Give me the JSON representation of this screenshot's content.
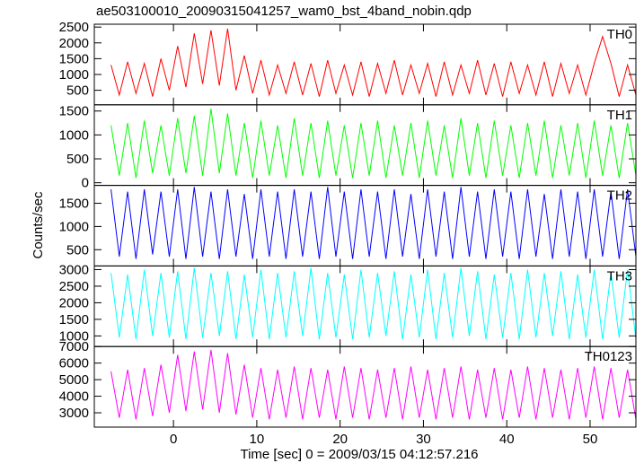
{
  "chart_data": {
    "type": "line",
    "title": "ae503100010_20090315041257_wam0_bst_4band_nobin.qdp",
    "xlabel": "Time [sec] 0 = 2009/03/15 04:12:57.216",
    "ylabel": "Counts/sec",
    "xlim": [
      -9.5,
      55.5
    ],
    "xticks": [
      0,
      10,
      20,
      30,
      40,
      50
    ],
    "x": [
      -7.5,
      -6.5,
      -5.5,
      -4.5,
      -3.5,
      -2.5,
      -1.5,
      -0.5,
      0.5,
      1.5,
      2.5,
      3.5,
      4.5,
      5.5,
      6.5,
      7.5,
      8.5,
      9.5,
      10.5,
      11.5,
      12.5,
      13.5,
      14.5,
      15.5,
      16.5,
      17.5,
      18.5,
      19.5,
      20.5,
      21.5,
      22.5,
      23.5,
      24.5,
      25.5,
      26.5,
      27.5,
      28.5,
      29.5,
      30.5,
      31.5,
      32.5,
      33.5,
      34.5,
      35.5,
      36.5,
      37.5,
      38.5,
      39.5,
      40.5,
      41.5,
      42.5,
      43.5,
      44.5,
      45.5,
      46.5,
      47.5,
      48.5,
      49.5,
      50.5,
      51.5,
      52.5,
      53.5,
      54.5,
      55.5
    ],
    "series": [
      {
        "name": "TH0",
        "color": "#ff0000",
        "ylim": [
          40,
          2590
        ],
        "yticks": [
          500,
          1000,
          1500,
          2000,
          2500
        ],
        "values": [
          1300,
          350,
          1400,
          400,
          1350,
          300,
          1500,
          500,
          1900,
          600,
          2300,
          700,
          2400,
          650,
          2450,
          500,
          1600,
          400,
          1450,
          350,
          1300,
          400,
          1400,
          350,
          1350,
          300,
          1450,
          400,
          1300,
          350,
          1400,
          300,
          1350,
          400,
          1450,
          350,
          1300,
          400,
          1350,
          300,
          1400,
          350,
          1300,
          400,
          1450,
          350,
          1350,
          300,
          1400,
          400,
          1300,
          350,
          1400,
          300,
          1350,
          400,
          1300,
          350,
          1350,
          2200,
          1350,
          300,
          1300,
          350
        ]
      },
      {
        "name": "TH1",
        "color": "#00ff00",
        "ylim": [
          -55,
          1630
        ],
        "yticks": [
          0,
          500,
          1000,
          1500
        ],
        "values": [
          1200,
          150,
          1250,
          100,
          1300,
          200,
          1200,
          150,
          1350,
          200,
          1400,
          150,
          1550,
          200,
          1450,
          150,
          1250,
          100,
          1300,
          150,
          1200,
          100,
          1350,
          150,
          1250,
          100,
          1300,
          150,
          1200,
          100,
          1250,
          150,
          1300,
          100,
          1200,
          150,
          1250,
          100,
          1300,
          150,
          1200,
          100,
          1350,
          150,
          1250,
          100,
          1300,
          150,
          1200,
          100,
          1250,
          150,
          1300,
          100,
          1200,
          150,
          1250,
          100,
          1300,
          150,
          1200,
          100,
          1250,
          150
        ]
      },
      {
        "name": "TH2",
        "color": "#0000ff",
        "ylim": [
          150,
          1885
        ],
        "yticks": [
          500,
          1000,
          1500
        ],
        "values": [
          1800,
          350,
          1750,
          300,
          1800,
          400,
          1750,
          350,
          1800,
          300,
          1850,
          350,
          1750,
          300,
          1800,
          350,
          1700,
          300,
          1800,
          350,
          1750,
          300,
          1800,
          350,
          1750,
          300,
          1850,
          350,
          1750,
          300,
          1800,
          350,
          1750,
          300,
          1800,
          350,
          1700,
          300,
          1800,
          350,
          1750,
          300,
          1850,
          350,
          1750,
          300,
          1800,
          350,
          1750,
          300,
          1800,
          350,
          1700,
          300,
          1800,
          350,
          1750,
          300,
          1800,
          350,
          1750,
          300,
          1800,
          350
        ]
      },
      {
        "name": "TH3",
        "color": "#00ffff",
        "ylim": [
          680,
          3110
        ],
        "yticks": [
          1000,
          1500,
          2000,
          2500,
          3000
        ],
        "values": [
          2900,
          950,
          2850,
          900,
          3000,
          1000,
          2900,
          950,
          2950,
          900,
          3050,
          950,
          2900,
          1000,
          2950,
          900,
          2850,
          950,
          3000,
          900,
          2900,
          950,
          2950,
          1000,
          3050,
          900,
          2900,
          950,
          2850,
          900,
          3000,
          950,
          2900,
          1000,
          2950,
          900,
          2850,
          950,
          3000,
          900,
          2900,
          950,
          3050,
          1000,
          2950,
          900,
          2850,
          950,
          2900,
          900,
          3000,
          950,
          2900,
          1000,
          2950,
          900,
          2850,
          950,
          3000,
          900,
          2900,
          950,
          3000,
          900
        ]
      },
      {
        "name": "TH0123",
        "color": "#ff00ff",
        "ylim": [
          2135,
          7000
        ],
        "yticks": [
          3000,
          4000,
          5000,
          6000,
          7000
        ],
        "values": [
          5500,
          2700,
          5600,
          2600,
          5700,
          2800,
          5900,
          3000,
          6500,
          3100,
          6700,
          3200,
          6800,
          3000,
          6600,
          2900,
          5900,
          2700,
          5700,
          2600,
          5600,
          2700,
          5800,
          2600,
          5700,
          2700,
          5600,
          2600,
          5800,
          2700,
          5700,
          2600,
          5600,
          2700,
          5700,
          2600,
          5800,
          2700,
          5600,
          2600,
          5700,
          2700,
          5800,
          2600,
          5600,
          2700,
          5700,
          2600,
          5600,
          2700,
          5800,
          2600,
          5700,
          2700,
          5600,
          2600,
          5700,
          2700,
          5800,
          2600,
          5700,
          2700,
          5600,
          2600
        ]
      }
    ]
  }
}
